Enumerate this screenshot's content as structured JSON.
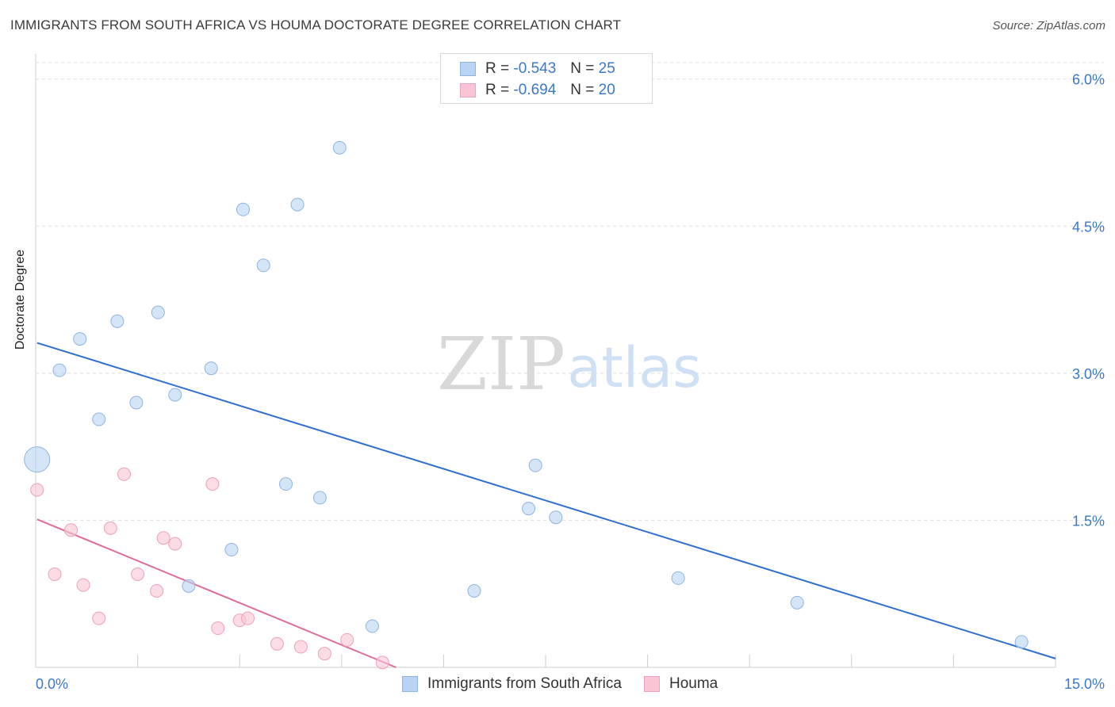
{
  "title": "IMMIGRANTS FROM SOUTH AFRICA VS HOUMA DOCTORATE DEGREE CORRELATION CHART",
  "source": "Source: ZipAtlas.com",
  "watermark": {
    "zip": "ZIP",
    "atlas": "atlas"
  },
  "legend": [
    {
      "r_label": "R = ",
      "r_value": "-0.543",
      "n_label": "N = ",
      "n_value": "25"
    },
    {
      "r_label": "R = ",
      "r_value": "-0.694",
      "n_label": "N = ",
      "n_value": "20"
    }
  ],
  "chart_data": {
    "type": "scatter",
    "title": "IMMIGRANTS FROM SOUTH AFRICA VS HOUMA DOCTORATE DEGREE CORRELATION CHART",
    "xlabel": "",
    "ylabel": "Doctorate Degree",
    "xlim": [
      0,
      15
    ],
    "ylim": [
      0,
      6.2
    ],
    "x_tick_labels": [
      "0.0%",
      "15.0%"
    ],
    "y_tick_labels": [
      "1.5%",
      "3.0%",
      "4.5%",
      "6.0%"
    ],
    "y_tick_values": [
      1.5,
      3.0,
      4.5,
      6.0
    ],
    "legend_position": "bottom",
    "colors": {
      "blue_fill": "#b8d3f3",
      "blue_stroke": "#8fb4e0",
      "blue_line": "#2f6fd0",
      "pink_fill": "#f9c4d3",
      "pink_stroke": "#eda2b9",
      "pink_line": "#e06c96",
      "tick_text": "#3b78c9"
    },
    "series": [
      {
        "name": "Immigrants from South Africa",
        "points": [
          {
            "x": 0.02,
            "y": 2.12,
            "big": true
          },
          {
            "x": 0.35,
            "y": 3.03
          },
          {
            "x": 0.65,
            "y": 3.35
          },
          {
            "x": 0.93,
            "y": 2.53
          },
          {
            "x": 1.2,
            "y": 3.53
          },
          {
            "x": 1.48,
            "y": 2.7
          },
          {
            "x": 1.8,
            "y": 3.62
          },
          {
            "x": 2.05,
            "y": 2.78
          },
          {
            "x": 2.25,
            "y": 0.83
          },
          {
            "x": 2.58,
            "y": 3.05
          },
          {
            "x": 2.88,
            "y": 1.2
          },
          {
            "x": 3.05,
            "y": 4.67
          },
          {
            "x": 3.35,
            "y": 4.1
          },
          {
            "x": 3.68,
            "y": 1.87
          },
          {
            "x": 3.85,
            "y": 4.72
          },
          {
            "x": 4.18,
            "y": 1.73
          },
          {
            "x": 4.47,
            "y": 5.3
          },
          {
            "x": 4.95,
            "y": 0.42
          },
          {
            "x": 6.45,
            "y": 0.78
          },
          {
            "x": 7.25,
            "y": 1.62
          },
          {
            "x": 7.35,
            "y": 2.06
          },
          {
            "x": 7.65,
            "y": 1.53
          },
          {
            "x": 9.45,
            "y": 0.91
          },
          {
            "x": 11.2,
            "y": 0.66
          },
          {
            "x": 14.5,
            "y": 0.26
          }
        ],
        "trend": {
          "x0": 0.02,
          "y0": 3.31,
          "x1": 15.0,
          "y1": 0.09
        }
      },
      {
        "name": "Houma",
        "points": [
          {
            "x": 0.02,
            "y": 1.81
          },
          {
            "x": 0.28,
            "y": 0.95
          },
          {
            "x": 0.52,
            "y": 1.4
          },
          {
            "x": 0.7,
            "y": 0.84
          },
          {
            "x": 0.93,
            "y": 0.5
          },
          {
            "x": 1.1,
            "y": 1.42
          },
          {
            "x": 1.3,
            "y": 1.97
          },
          {
            "x": 1.5,
            "y": 0.95
          },
          {
            "x": 1.78,
            "y": 0.78
          },
          {
            "x": 1.88,
            "y": 1.32
          },
          {
            "x": 2.05,
            "y": 1.26
          },
          {
            "x": 2.6,
            "y": 1.87
          },
          {
            "x": 2.68,
            "y": 0.4
          },
          {
            "x": 3.0,
            "y": 0.48
          },
          {
            "x": 3.12,
            "y": 0.5
          },
          {
            "x": 3.55,
            "y": 0.24
          },
          {
            "x": 3.9,
            "y": 0.21
          },
          {
            "x": 4.25,
            "y": 0.14
          },
          {
            "x": 4.58,
            "y": 0.28
          },
          {
            "x": 5.1,
            "y": 0.05
          }
        ],
        "trend": {
          "x0": 0.02,
          "y0": 1.51,
          "x1": 5.3,
          "y1": 0.0
        }
      }
    ]
  }
}
